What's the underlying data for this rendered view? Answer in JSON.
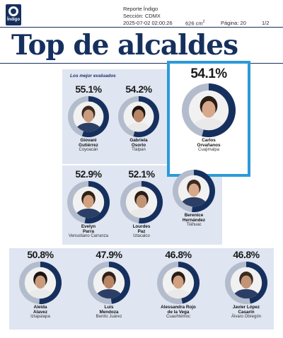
{
  "header": {
    "logo_text": "Índigo",
    "report": "Reporte Índigo",
    "section": "Sección: CDMX",
    "datetime": "2025-07-02 02:00:26",
    "area_value": "626 cm",
    "area_exp": "2",
    "page": "Página: 20",
    "page_count": "1/2"
  },
  "title": "Top de alcaldes",
  "panel_label": "Los mejor evaluados",
  "colors": {
    "navy": "#16305e",
    "ring_bg": "#b3bccc",
    "panel": "#dfe5f1",
    "accent": "#2c9ad8"
  },
  "featured": {
    "percent_value": 54.1,
    "percent": "54.1%",
    "name": [
      "Carlos",
      "Orvañanos"
    ],
    "municipality": "Cuajimalpa"
  },
  "candidates": [
    {
      "percent_value": 55.1,
      "percent": "55.1%",
      "name": [
        "Giovani",
        "Gutiérrez"
      ],
      "municipality": "Coyoacán"
    },
    {
      "percent_value": 54.2,
      "percent": "54.2%",
      "name": [
        "Gabriela",
        "Osorio"
      ],
      "municipality": "Tlalpan"
    },
    {
      "percent_value": 52.9,
      "percent": "52.9%",
      "name": [
        "Evelyn",
        "Parra"
      ],
      "municipality": "Venustiano Carranza"
    },
    {
      "percent_value": 52.1,
      "percent": "52.1%",
      "name": [
        "Lourdes",
        "Paz"
      ],
      "municipality": "Iztacalco"
    },
    {
      "percent_value": 51.5,
      "percent": "",
      "name": [
        "Berenice",
        "Hernández"
      ],
      "municipality": "Tláhuac"
    },
    {
      "percent_value": 50.8,
      "percent": "50.8%",
      "name": [
        "Aleida",
        "Alavez"
      ],
      "municipality": "Iztapalapa"
    },
    {
      "percent_value": 47.9,
      "percent": "47.9%",
      "name": [
        "Luis",
        "Mendoza"
      ],
      "municipality": "Benito Juárez"
    },
    {
      "percent_value": 46.8,
      "percent": "46.8%",
      "name": [
        "Alessandra Rojo",
        "de la Vega"
      ],
      "municipality": "Cuauhtémoc"
    },
    {
      "percent_value": 46.8,
      "percent": "46.8%",
      "name": [
        "Javier López",
        "Casarín"
      ],
      "municipality": "Álvaro Obregón"
    }
  ]
}
